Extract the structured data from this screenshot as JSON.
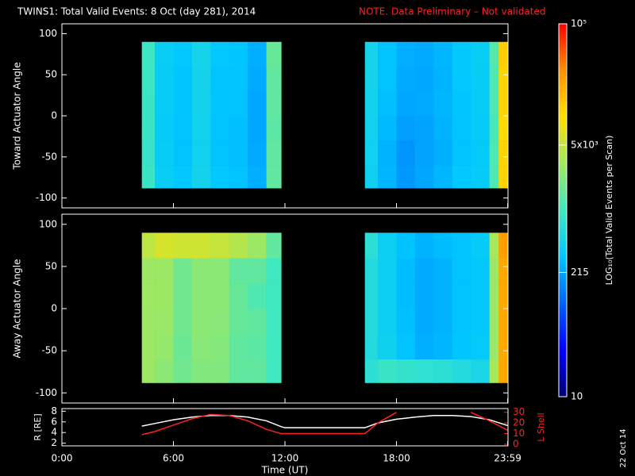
{
  "title": "TWINS1: Total Valid Events:  8 Oct (day 281), 2014",
  "note": "NOTE. Data Preliminary – Not validated",
  "date_stamp": "22 Oct 14",
  "colorbar": {
    "label": "LOG₁₀(Total Valid Events per Scan)",
    "lim": [
      10,
      100000
    ],
    "log": true,
    "ticks": [
      10,
      215,
      {
        "value": 5000,
        "label": "5x10³"
      },
      {
        "value": 100000,
        "label": "10⁵"
      }
    ],
    "colormap": [
      "#000070",
      "#0000ff",
      "#0060ff",
      "#00c8ff",
      "#40e8c0",
      "#a0e860",
      "#ffe000",
      "#ff9000",
      "#ff0000"
    ]
  },
  "chart_data": [
    {
      "type": "heatmap",
      "ylabel": "Toward Actuator Angle",
      "xlim": [
        0,
        24
      ],
      "ylim": [
        -112,
        112
      ],
      "yticks": [
        -100,
        -50,
        0,
        50,
        100
      ],
      "x_edges": [
        4.3,
        5,
        6,
        7,
        8,
        9,
        10,
        11,
        11.8,
        16.3,
        17,
        18,
        19,
        20,
        21,
        22,
        23,
        23.5,
        24
      ],
      "y_edges": [
        -88,
        -60,
        -30,
        0,
        30,
        60,
        90
      ],
      "z": [
        [
          900,
          380,
          320,
          450,
          320,
          300,
          240,
          1500,
          null,
          420,
          260,
          190,
          220,
          260,
          320,
          350,
          1200,
          12000
        ],
        [
          850,
          360,
          300,
          430,
          300,
          290,
          230,
          1500,
          null,
          430,
          250,
          180,
          210,
          240,
          300,
          340,
          1200,
          12000
        ],
        [
          880,
          350,
          300,
          440,
          300,
          290,
          220,
          1400,
          null,
          440,
          270,
          200,
          210,
          250,
          300,
          350,
          1100,
          11000
        ],
        [
          900,
          360,
          310,
          450,
          310,
          300,
          220,
          1500,
          null,
          450,
          290,
          220,
          230,
          260,
          310,
          360,
          1200,
          12000
        ],
        [
          920,
          370,
          310,
          460,
          300,
          300,
          230,
          1500,
          null,
          460,
          300,
          230,
          220,
          250,
          320,
          370,
          1200,
          12000
        ],
        [
          950,
          380,
          320,
          470,
          320,
          310,
          240,
          1600,
          null,
          470,
          300,
          240,
          230,
          260,
          330,
          380,
          1300,
          13000
        ]
      ]
    },
    {
      "type": "heatmap",
      "ylabel": "Away Actuator Angle",
      "xlim": [
        0,
        24
      ],
      "ylim": [
        -112,
        112
      ],
      "yticks": [
        -100,
        -50,
        0,
        50,
        100
      ],
      "x_edges": [
        4.3,
        5,
        6,
        7,
        8,
        9,
        10,
        11,
        11.8,
        16.3,
        17,
        18,
        19,
        20,
        21,
        22,
        23,
        23.5,
        24
      ],
      "y_edges": [
        -88,
        -60,
        -30,
        0,
        30,
        60,
        90
      ],
      "z": [
        [
          3000,
          2500,
          1800,
          2200,
          2200,
          1500,
          1500,
          1000,
          null,
          700,
          900,
          800,
          750,
          700,
          600,
          500,
          3500,
          22000
        ],
        [
          3000,
          2800,
          1700,
          2400,
          2300,
          1500,
          1400,
          1000,
          null,
          600,
          420,
          300,
          240,
          260,
          310,
          340,
          3000,
          22000
        ],
        [
          3000,
          2900,
          1800,
          2500,
          2400,
          1600,
          1500,
          1000,
          null,
          620,
          400,
          290,
          230,
          250,
          300,
          330,
          3000,
          22000
        ],
        [
          3100,
          3000,
          1800,
          2500,
          2500,
          1600,
          1200,
          1000,
          null,
          600,
          400,
          280,
          230,
          250,
          300,
          330,
          3000,
          22000
        ],
        [
          3000,
          3000,
          1800,
          2500,
          2500,
          1500,
          1500,
          1000,
          null,
          600,
          400,
          280,
          230,
          250,
          300,
          330,
          3000,
          22000
        ],
        [
          4500,
          6000,
          5500,
          5500,
          5000,
          4000,
          3000,
          1500,
          null,
          700,
          400,
          300,
          250,
          280,
          300,
          350,
          3500,
          25000
        ]
      ]
    },
    {
      "type": "line",
      "xlabel": "Time (UT)",
      "ylabel": "R [RE]",
      "y2label": "L Shell",
      "xlim": [
        0,
        24
      ],
      "xticks": [
        {
          "value": 0,
          "label": "0:00"
        },
        {
          "value": 6,
          "label": "6:00"
        },
        {
          "value": 12,
          "label": "12:00"
        },
        {
          "value": 18,
          "label": "18:00"
        },
        {
          "value": 23.983,
          "label": "23:59"
        }
      ],
      "ylim": [
        1.5,
        8.5
      ],
      "yticks": [
        2,
        4,
        6,
        8
      ],
      "y2lim": [
        -1.5,
        33.5
      ],
      "y2ticks": [
        0,
        10,
        20,
        30
      ],
      "x": [
        4.3,
        5,
        6,
        7,
        8,
        9,
        10,
        11,
        11.8,
        12,
        13,
        14,
        15,
        16,
        16.3,
        17,
        18,
        19,
        20,
        21,
        22,
        23,
        24
      ],
      "series": [
        {
          "name": "R",
          "color": "#ffffff",
          "values": [
            5.2,
            5.7,
            6.4,
            6.9,
            7.2,
            7.2,
            6.9,
            6.2,
            5.1,
            4.9,
            4.9,
            4.9,
            4.9,
            4.9,
            4.9,
            5.8,
            6.5,
            6.9,
            7.2,
            7.2,
            7.0,
            6.4,
            5.3
          ]
        },
        {
          "name": "L",
          "color": "#ff2020",
          "axis": "y2",
          "values": [
            9,
            12,
            18,
            24,
            28,
            27,
            22,
            14,
            10,
            10,
            10,
            10,
            10,
            10,
            10,
            20,
            30,
            null,
            null,
            null,
            30,
            22,
            13
          ]
        }
      ]
    }
  ]
}
